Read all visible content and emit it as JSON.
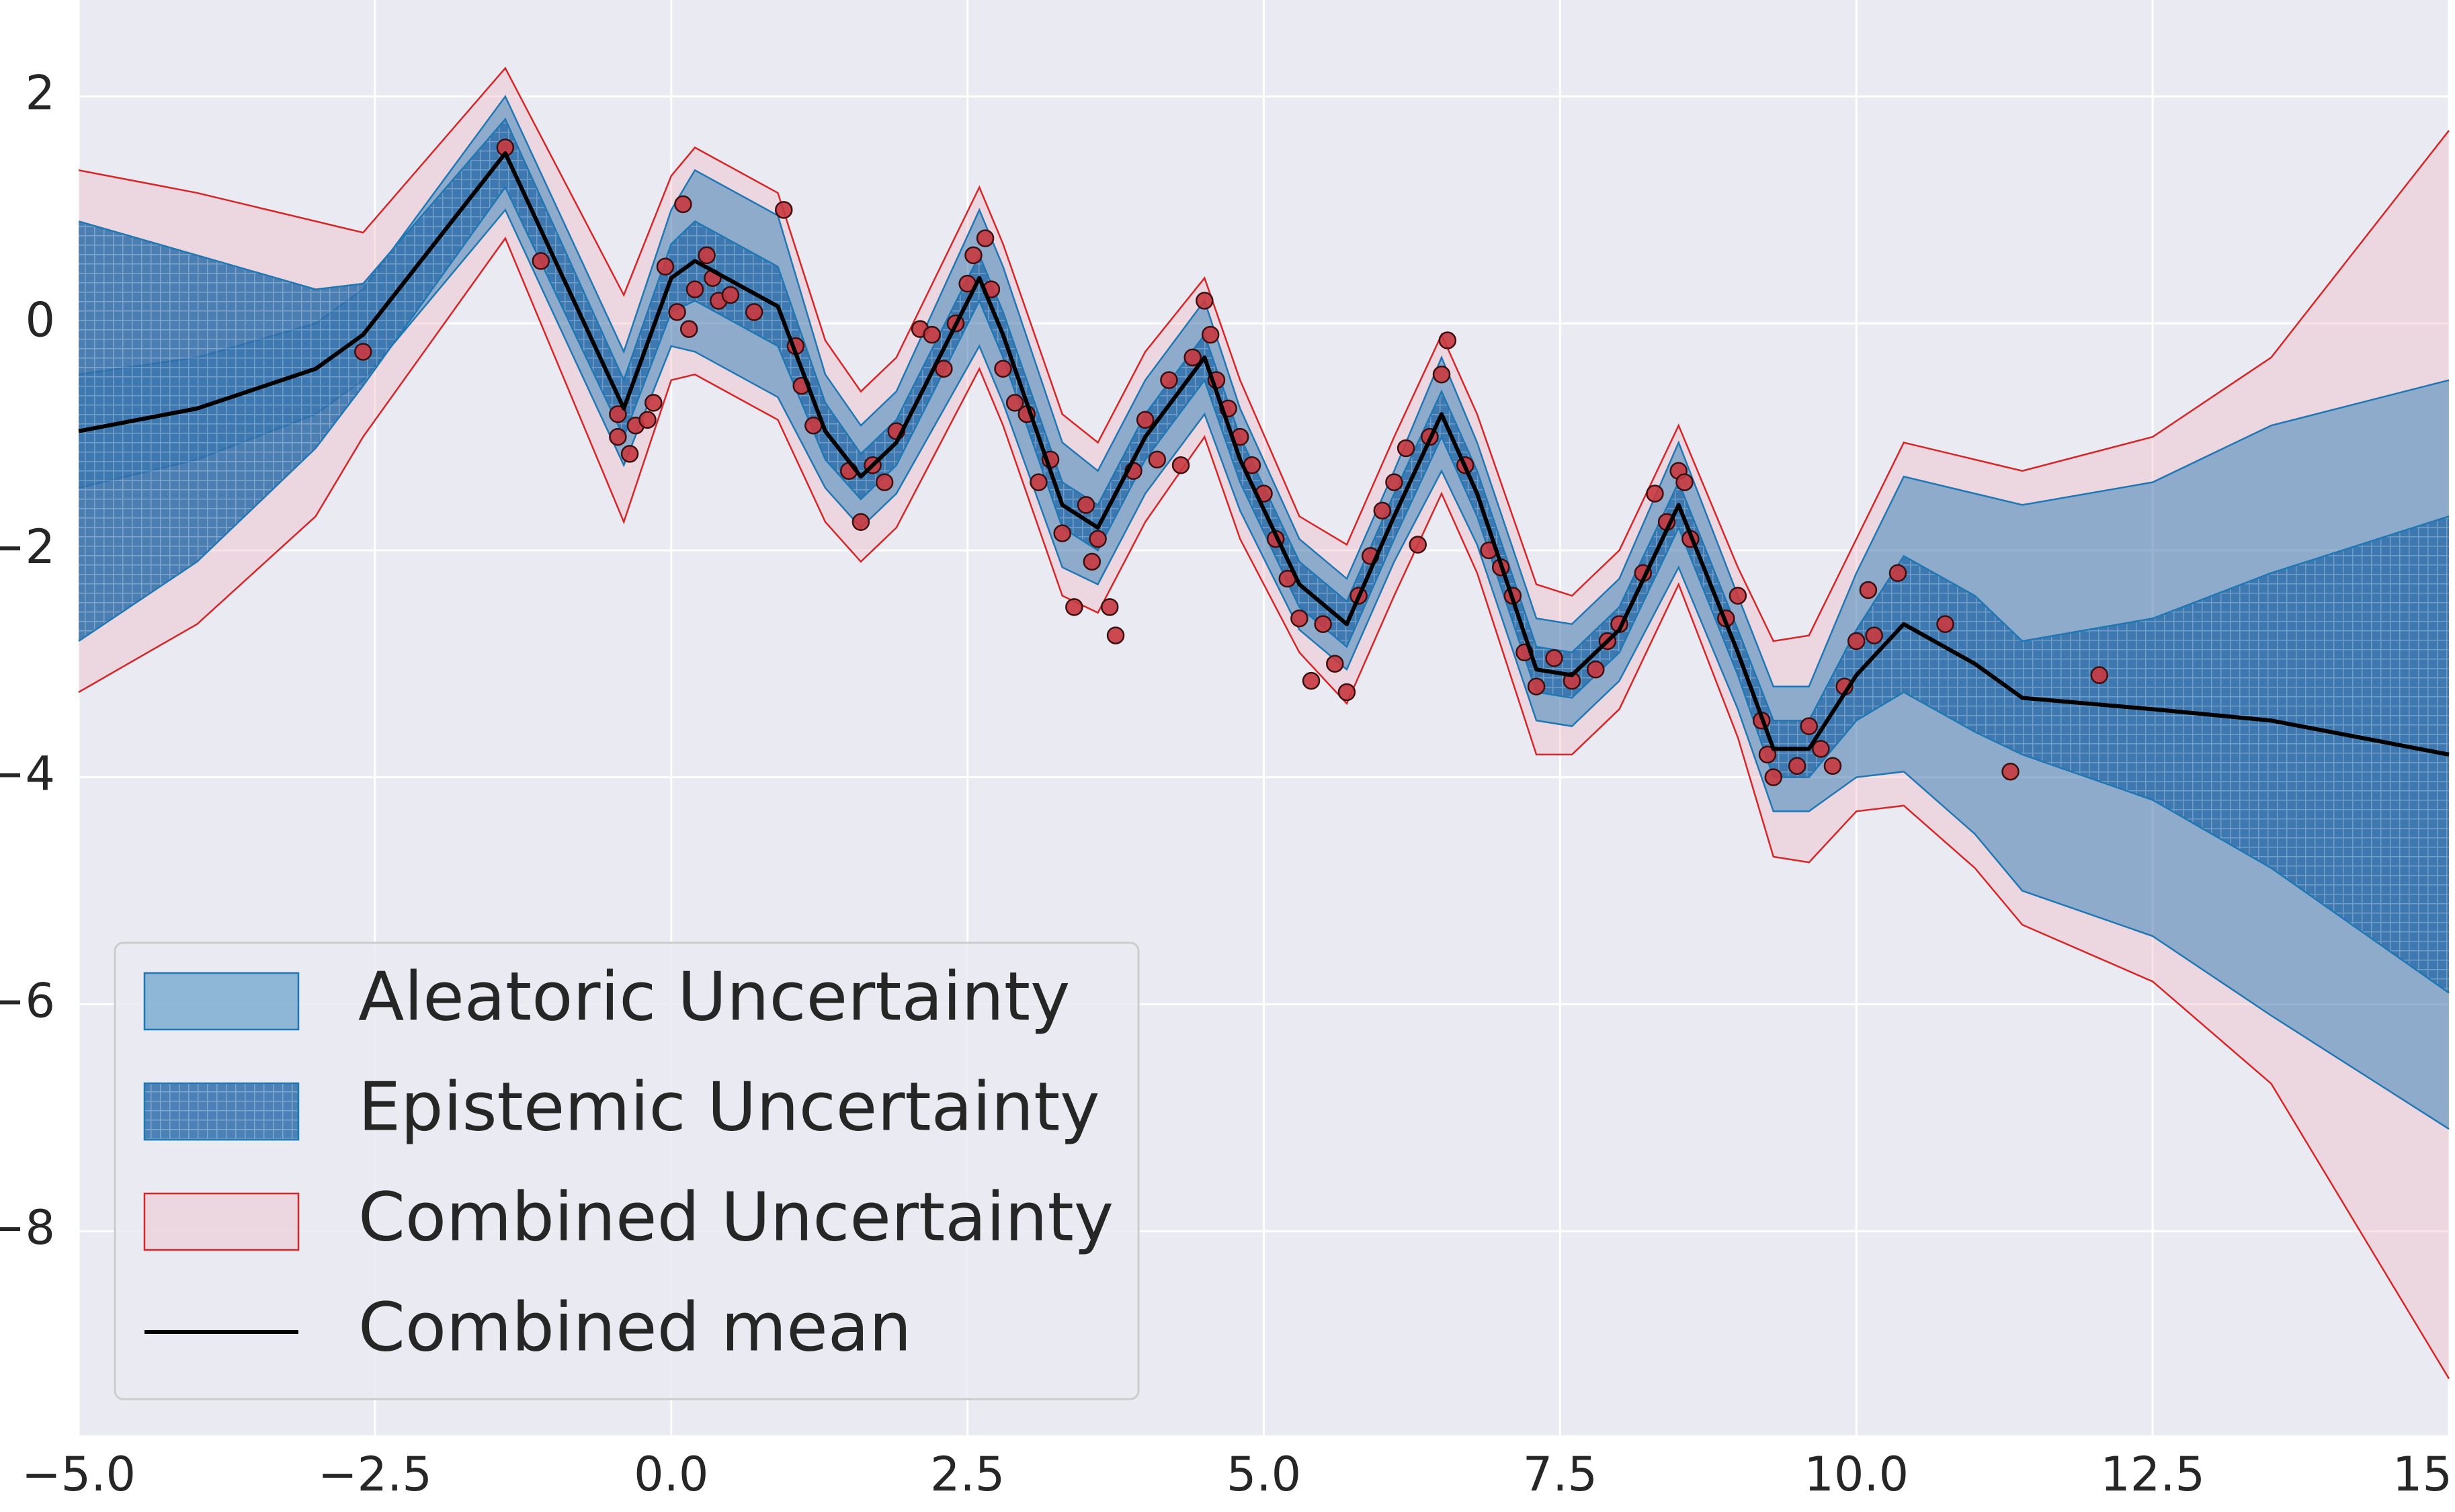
{
  "chart_data": {
    "type": "uncertainty",
    "xlim": [
      -5,
      15
    ],
    "ylim": [
      -9.8,
      2.85
    ],
    "xticks": [
      {
        "value": -5,
        "label": "−5.0"
      },
      {
        "value": -2.5,
        "label": "−2.5"
      },
      {
        "value": 0,
        "label": "0.0"
      },
      {
        "value": 2.5,
        "label": "2.5"
      },
      {
        "value": 5,
        "label": "5.0"
      },
      {
        "value": 7.5,
        "label": "7.5"
      },
      {
        "value": 10,
        "label": "10.0"
      },
      {
        "value": 12.5,
        "label": "12.5"
      },
      15
    ],
    "yticks": [
      2,
      0,
      {
        "value": -2,
        "label": "−2"
      },
      {
        "value": -4,
        "label": "−4"
      },
      {
        "value": -6,
        "label": "−6"
      },
      {
        "value": -8,
        "label": "−8"
      }
    ],
    "grid": true,
    "legend": "lower left",
    "x": [
      -5,
      -4,
      -3,
      -2.6,
      -1.4,
      -0.4,
      0,
      0.2,
      0.9,
      1.3,
      1.6,
      1.9,
      2.6,
      2.8,
      3.3,
      3.6,
      4.0,
      4.5,
      4.8,
      5.3,
      5.7,
      6.1,
      6.5,
      6.8,
      7.3,
      7.6,
      8.0,
      8.5,
      9.0,
      9.3,
      9.6,
      10.0,
      10.4,
      11.0,
      11.4,
      12.5,
      13.5,
      15
    ],
    "bands": [
      {
        "name": "Aleatoric Uncertainty",
        "color": "#1f77b4",
        "hatch": false,
        "upper": [
          -0.45,
          -0.3,
          0,
          0.3,
          2.0,
          -0.25,
          1.0,
          1.35,
          0.95,
          -0.45,
          -0.9,
          -0.6,
          1.0,
          0.5,
          -1.05,
          -1.3,
          -0.5,
          0.2,
          -0.75,
          -1.9,
          -2.25,
          -1.3,
          -0.3,
          -1.05,
          -2.6,
          -2.65,
          -2.25,
          -1.05,
          -2.4,
          -3.2,
          -3.2,
          -2.2,
          -1.35,
          -1.5,
          -1.6,
          -1.4,
          -0.9,
          -0.5
        ],
        "lower": [
          -1.45,
          -1.2,
          -0.8,
          -0.5,
          1.0,
          -1.25,
          -0.2,
          -0.25,
          -0.65,
          -1.45,
          -1.8,
          -1.5,
          -0.2,
          -0.7,
          -2.15,
          -2.3,
          -1.5,
          -0.8,
          -1.65,
          -2.7,
          -3.05,
          -2.1,
          -1.3,
          -1.95,
          -3.5,
          -3.55,
          -3.15,
          -2.15,
          -3.4,
          -4.3,
          -4.3,
          -4.0,
          -3.95,
          -4.5,
          -5.0,
          -5.4,
          -6.1,
          -7.1
        ]
      },
      {
        "name": "Epistemic Uncertainty",
        "color": "#1f77b4",
        "hatch": true,
        "upper": [
          0.9,
          0.6,
          0.3,
          0.35,
          1.8,
          -0.5,
          0.7,
          0.9,
          0.5,
          -0.7,
          -1.15,
          -0.85,
          0.6,
          0.1,
          -1.4,
          -1.6,
          -0.8,
          -0.1,
          -1.0,
          -2.1,
          -2.45,
          -1.5,
          -0.6,
          -1.3,
          -2.85,
          -2.9,
          -2.5,
          -1.4,
          -2.7,
          -3.5,
          -3.5,
          -2.7,
          -2.05,
          -2.4,
          -2.8,
          -2.6,
          -2.2,
          -1.7
        ],
        "lower": [
          -2.8,
          -2.1,
          -1.1,
          -0.55,
          1.2,
          -1.0,
          0.1,
          0.2,
          -0.2,
          -1.2,
          -1.55,
          -1.25,
          0.2,
          -0.3,
          -1.8,
          -2.0,
          -1.2,
          -0.5,
          -1.4,
          -2.5,
          -2.85,
          -1.9,
          -1.0,
          -1.7,
          -3.25,
          -3.3,
          -2.9,
          -1.8,
          -3.1,
          -4.0,
          -4.0,
          -3.5,
          -3.25,
          -3.6,
          -3.8,
          -4.2,
          -4.8,
          -5.9
        ]
      },
      {
        "name": "Combined Uncertainty",
        "color": "#d62728",
        "hatch": false,
        "upper": [
          1.35,
          1.15,
          0.9,
          0.8,
          2.25,
          0.25,
          1.3,
          1.55,
          1.15,
          -0.15,
          -0.6,
          -0.3,
          1.2,
          0.7,
          -0.8,
          -1.05,
          -0.25,
          0.4,
          -0.5,
          -1.7,
          -1.95,
          -1.0,
          -0.1,
          -0.8,
          -2.3,
          -2.4,
          -2.0,
          -0.9,
          -2.15,
          -2.8,
          -2.75,
          -1.9,
          -1.05,
          -1.2,
          -1.3,
          -1.0,
          -0.3,
          1.7
        ],
        "lower": [
          -3.25,
          -2.65,
          -1.7,
          -1.0,
          0.75,
          -1.75,
          -0.5,
          -0.45,
          -0.85,
          -1.75,
          -2.1,
          -1.8,
          -0.4,
          -0.9,
          -2.4,
          -2.55,
          -1.75,
          -1.0,
          -1.9,
          -2.9,
          -3.35,
          -2.4,
          -1.5,
          -2.2,
          -3.8,
          -3.8,
          -3.4,
          -2.3,
          -3.65,
          -4.7,
          -4.75,
          -4.3,
          -4.25,
          -4.8,
          -5.3,
          -5.8,
          -6.7,
          -9.3
        ]
      }
    ],
    "mean": {
      "name": "Combined mean",
      "color": "#000000",
      "values": [
        -0.95,
        -0.75,
        -0.4,
        -0.1,
        1.5,
        -0.75,
        0.4,
        0.55,
        0.15,
        -0.95,
        -1.35,
        -1.05,
        0.4,
        -0.1,
        -1.6,
        -1.8,
        -1.0,
        -0.3,
        -1.2,
        -2.3,
        -2.65,
        -1.7,
        -0.8,
        -1.5,
        -3.05,
        -3.1,
        -2.7,
        -1.6,
        -2.9,
        -3.75,
        -3.75,
        -3.1,
        -2.65,
        -3.0,
        -3.3,
        -3.4,
        -3.5,
        -3.8
      ]
    },
    "points": {
      "color": "#c8383f",
      "x": [
        -2.6,
        -1.4,
        -1.1,
        -0.45,
        -0.45,
        -0.35,
        -0.3,
        -0.2,
        -0.15,
        -0.05,
        0.05,
        0.1,
        0.15,
        0.2,
        0.3,
        0.35,
        0.4,
        0.5,
        0.7,
        0.95,
        1.05,
        1.1,
        1.2,
        1.5,
        1.6,
        1.7,
        1.8,
        1.9,
        2.1,
        2.2,
        2.3,
        2.4,
        2.5,
        2.55,
        2.65,
        2.7,
        2.8,
        2.9,
        3.0,
        3.1,
        3.2,
        3.3,
        3.4,
        3.5,
        3.55,
        3.6,
        3.7,
        3.75,
        3.9,
        4.0,
        4.1,
        4.2,
        4.3,
        4.4,
        4.5,
        4.55,
        4.6,
        4.7,
        4.8,
        4.9,
        5.0,
        5.1,
        5.2,
        5.3,
        5.4,
        5.5,
        5.6,
        5.7,
        5.8,
        5.9,
        6.0,
        6.1,
        6.2,
        6.3,
        6.4,
        6.5,
        6.55,
        6.7,
        6.9,
        7.0,
        7.1,
        7.2,
        7.3,
        7.45,
        7.6,
        7.8,
        7.9,
        8.0,
        8.2,
        8.3,
        8.4,
        8.5,
        8.55,
        8.6,
        8.9,
        9.0,
        9.2,
        9.25,
        9.3,
        9.5,
        9.6,
        9.7,
        9.8,
        9.9,
        10.0,
        10.1,
        10.15,
        10.35,
        10.75,
        11.3,
        12.05
      ],
      "y": [
        -0.25,
        1.55,
        0.55,
        -0.8,
        -1.0,
        -1.15,
        -0.9,
        -0.85,
        -0.7,
        0.5,
        0.1,
        1.05,
        -0.05,
        0.3,
        0.6,
        0.4,
        0.2,
        0.25,
        0.1,
        1.0,
        -0.2,
        -0.55,
        -0.9,
        -1.3,
        -1.75,
        -1.25,
        -1.4,
        -0.95,
        -0.05,
        -0.1,
        -0.4,
        0.0,
        0.35,
        0.6,
        0.75,
        0.3,
        -0.4,
        -0.7,
        -0.8,
        -1.4,
        -1.2,
        -1.85,
        -2.5,
        -1.6,
        -2.1,
        -1.9,
        -2.5,
        -2.75,
        -1.3,
        -0.85,
        -1.2,
        -0.5,
        -1.25,
        -0.3,
        0.2,
        -0.1,
        -0.5,
        -0.75,
        -1.0,
        -1.25,
        -1.5,
        -1.9,
        -2.25,
        -2.6,
        -3.15,
        -2.65,
        -3.0,
        -3.25,
        -2.4,
        -2.05,
        -1.65,
        -1.4,
        -1.1,
        -1.95,
        -1.0,
        -0.45,
        -0.15,
        -1.25,
        -2.0,
        -2.15,
        -2.4,
        -2.9,
        -3.2,
        -2.95,
        -3.15,
        -3.05,
        -2.8,
        -2.65,
        -2.2,
        -1.5,
        -1.75,
        -1.3,
        -1.4,
        -1.9,
        -2.6,
        -2.4,
        -3.5,
        -3.8,
        -4.0,
        -3.9,
        -3.55,
        -3.75,
        -3.9,
        -3.2,
        -2.8,
        -2.35,
        -2.75,
        -2.2,
        -2.65,
        -3.95,
        -3.1
      ]
    }
  }
}
